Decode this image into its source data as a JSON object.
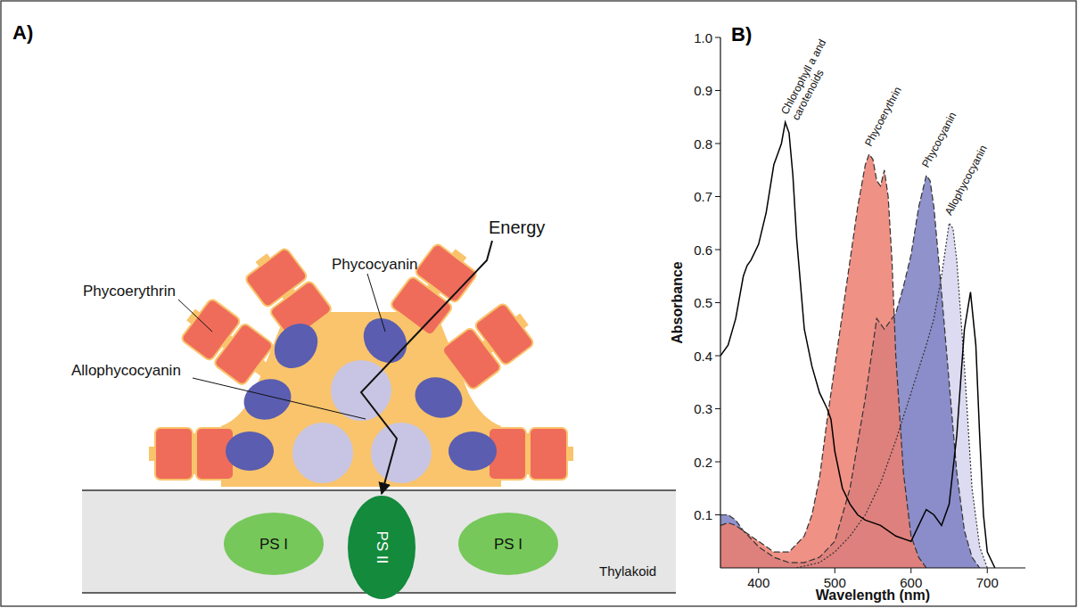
{
  "panel_labels": [
    "A)",
    "B)"
  ],
  "diagram": {
    "labels": {
      "phycocyanin": "Phycocyanin",
      "phycoerythrin": "Phycoerythrin",
      "allophycocyanin": "Allophycocyanin",
      "energy": "Energy"
    },
    "membrane": {
      "label": "Thylakoid",
      "complexes": [
        "PS I",
        "PS II",
        "PS I"
      ]
    }
  },
  "chart_data": {
    "type": "line",
    "x_label": "Wavelength (nm)",
    "y_label": "Absorbance",
    "xlim": [
      350,
      750
    ],
    "xticks": [
      400,
      500,
      600,
      700
    ],
    "ylim": [
      0,
      1
    ],
    "yticks": [
      0.1,
      0.2,
      0.3,
      0.4,
      0.5,
      0.6,
      0.7,
      0.8,
      0.9,
      {
        "value": 1,
        "label": "1.0"
      }
    ],
    "series": [
      {
        "name": "Chlorophyll a and carotenoids",
        "type": "line",
        "color": "#000000",
        "line_style": "solid",
        "x": [
          350,
          360,
          370,
          380,
          385,
          390,
          400,
          410,
          420,
          425,
          430,
          435,
          440,
          445,
          450,
          460,
          470,
          480,
          490,
          495,
          500,
          510,
          520,
          530,
          540,
          560,
          580,
          600,
          610,
          620,
          630,
          640,
          650,
          660,
          670,
          678,
          685,
          690,
          695,
          700,
          710
        ],
        "values": [
          0.4,
          0.42,
          0.47,
          0.55,
          0.57,
          0.58,
          0.61,
          0.67,
          0.76,
          0.78,
          0.8,
          0.84,
          0.82,
          0.74,
          0.62,
          0.45,
          0.38,
          0.33,
          0.3,
          0.28,
          0.22,
          0.15,
          0.12,
          0.1,
          0.09,
          0.08,
          0.06,
          0.05,
          0.08,
          0.11,
          0.1,
          0.08,
          0.12,
          0.25,
          0.45,
          0.52,
          0.42,
          0.25,
          0.1,
          0.03,
          0.0
        ]
      },
      {
        "name": "Phycoerythrin",
        "type": "area",
        "color": "#ec7e70",
        "line_style": "dashed",
        "x": [
          350,
          360,
          370,
          380,
          400,
          420,
          440,
          460,
          470,
          480,
          490,
          500,
          510,
          520,
          530,
          540,
          545,
          550,
          555,
          560,
          565,
          570,
          575,
          580,
          590,
          600,
          610,
          620
        ],
        "values": [
          0.08,
          0.085,
          0.08,
          0.07,
          0.05,
          0.03,
          0.03,
          0.06,
          0.1,
          0.17,
          0.28,
          0.38,
          0.48,
          0.58,
          0.68,
          0.76,
          0.78,
          0.77,
          0.73,
          0.72,
          0.75,
          0.7,
          0.58,
          0.4,
          0.18,
          0.06,
          0.02,
          0
        ]
      },
      {
        "name": "Phycocyanin",
        "type": "area",
        "color": "#7b7fc2",
        "line_style": "dashed",
        "x": [
          350,
          360,
          370,
          380,
          400,
          420,
          440,
          460,
          480,
          500,
          520,
          540,
          555,
          565,
          580,
          590,
          600,
          610,
          620,
          625,
          630,
          640,
          650,
          660,
          670,
          680,
          690
        ],
        "values": [
          0.1,
          0.1,
          0.09,
          0.07,
          0.04,
          0.02,
          0.01,
          0.01,
          0.02,
          0.05,
          0.15,
          0.32,
          0.47,
          0.45,
          0.48,
          0.53,
          0.59,
          0.68,
          0.74,
          0.73,
          0.68,
          0.52,
          0.35,
          0.18,
          0.07,
          0.02,
          0
        ]
      },
      {
        "name": "Allophycocyanin",
        "type": "area",
        "color": "#d6d5ee",
        "line_style": "dotted",
        "x": [
          450,
          480,
          500,
          520,
          540,
          560,
          580,
          600,
          620,
          630,
          640,
          650,
          655,
          660,
          670,
          680,
          690,
          700
        ],
        "values": [
          0,
          0.01,
          0.03,
          0.06,
          0.1,
          0.16,
          0.24,
          0.33,
          0.42,
          0.47,
          0.55,
          0.65,
          0.64,
          0.58,
          0.38,
          0.15,
          0.04,
          0
        ]
      }
    ]
  }
}
